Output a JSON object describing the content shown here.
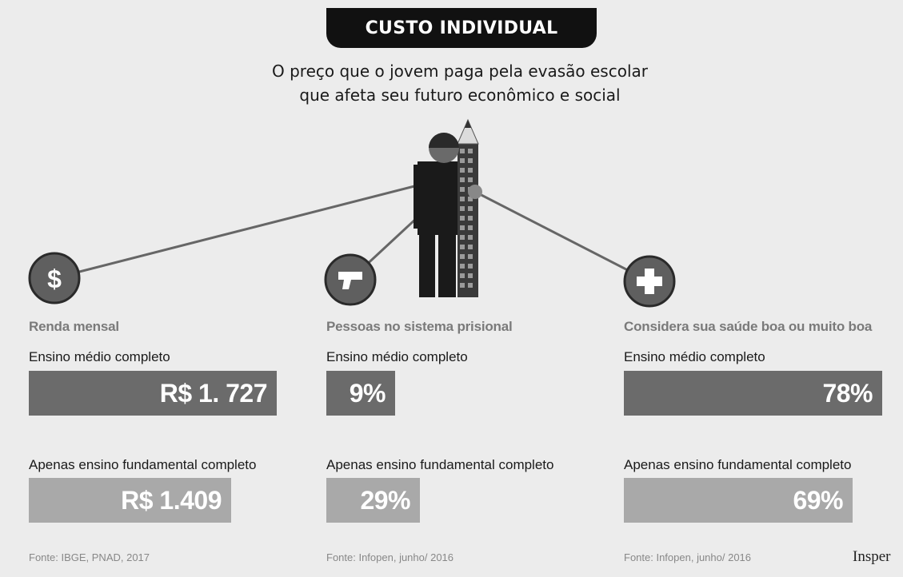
{
  "header": {
    "title": "CUSTO INDIVIDUAL",
    "subtitle_line1": "O preço que o jovem paga pela evasão escolar",
    "subtitle_line2": "que afeta seu futuro econômico e social"
  },
  "icons": [
    "dollar-icon",
    "gun-icon",
    "health-cross-icon",
    "student-pencil-illustration"
  ],
  "colors": {
    "dark_bar": "#6b6b6b",
    "light_bar": "#a9a9a9",
    "icon": "#5f5f5f",
    "header_bg": "#111111"
  },
  "chart_data": [
    {
      "type": "bar",
      "title": "Renda mensal",
      "categories": [
        "Ensino médio completo",
        "Apenas ensino fundamental completo"
      ],
      "values": [
        1727,
        1409
      ],
      "value_labels": [
        "R$ 1. 727",
        "R$ 1.409"
      ],
      "source": "Fonte: IBGE, PNAD, 2017"
    },
    {
      "type": "bar",
      "title": "Pessoas no sistema prisional",
      "categories": [
        "Ensino médio completo",
        "Apenas ensino fundamental completo"
      ],
      "values": [
        9,
        29
      ],
      "value_labels": [
        "9%",
        "29%"
      ],
      "source": "Fonte: Infopen, junho/ 2016"
    },
    {
      "type": "bar",
      "title": "Considera sua saúde boa ou muito boa",
      "categories": [
        "Ensino médio completo",
        "Apenas ensino fundamental completo"
      ],
      "values": [
        78,
        69
      ],
      "value_labels": [
        "78%",
        "69%"
      ],
      "source": "Fonte: Infopen, junho/ 2016"
    }
  ],
  "brand": "Insper"
}
